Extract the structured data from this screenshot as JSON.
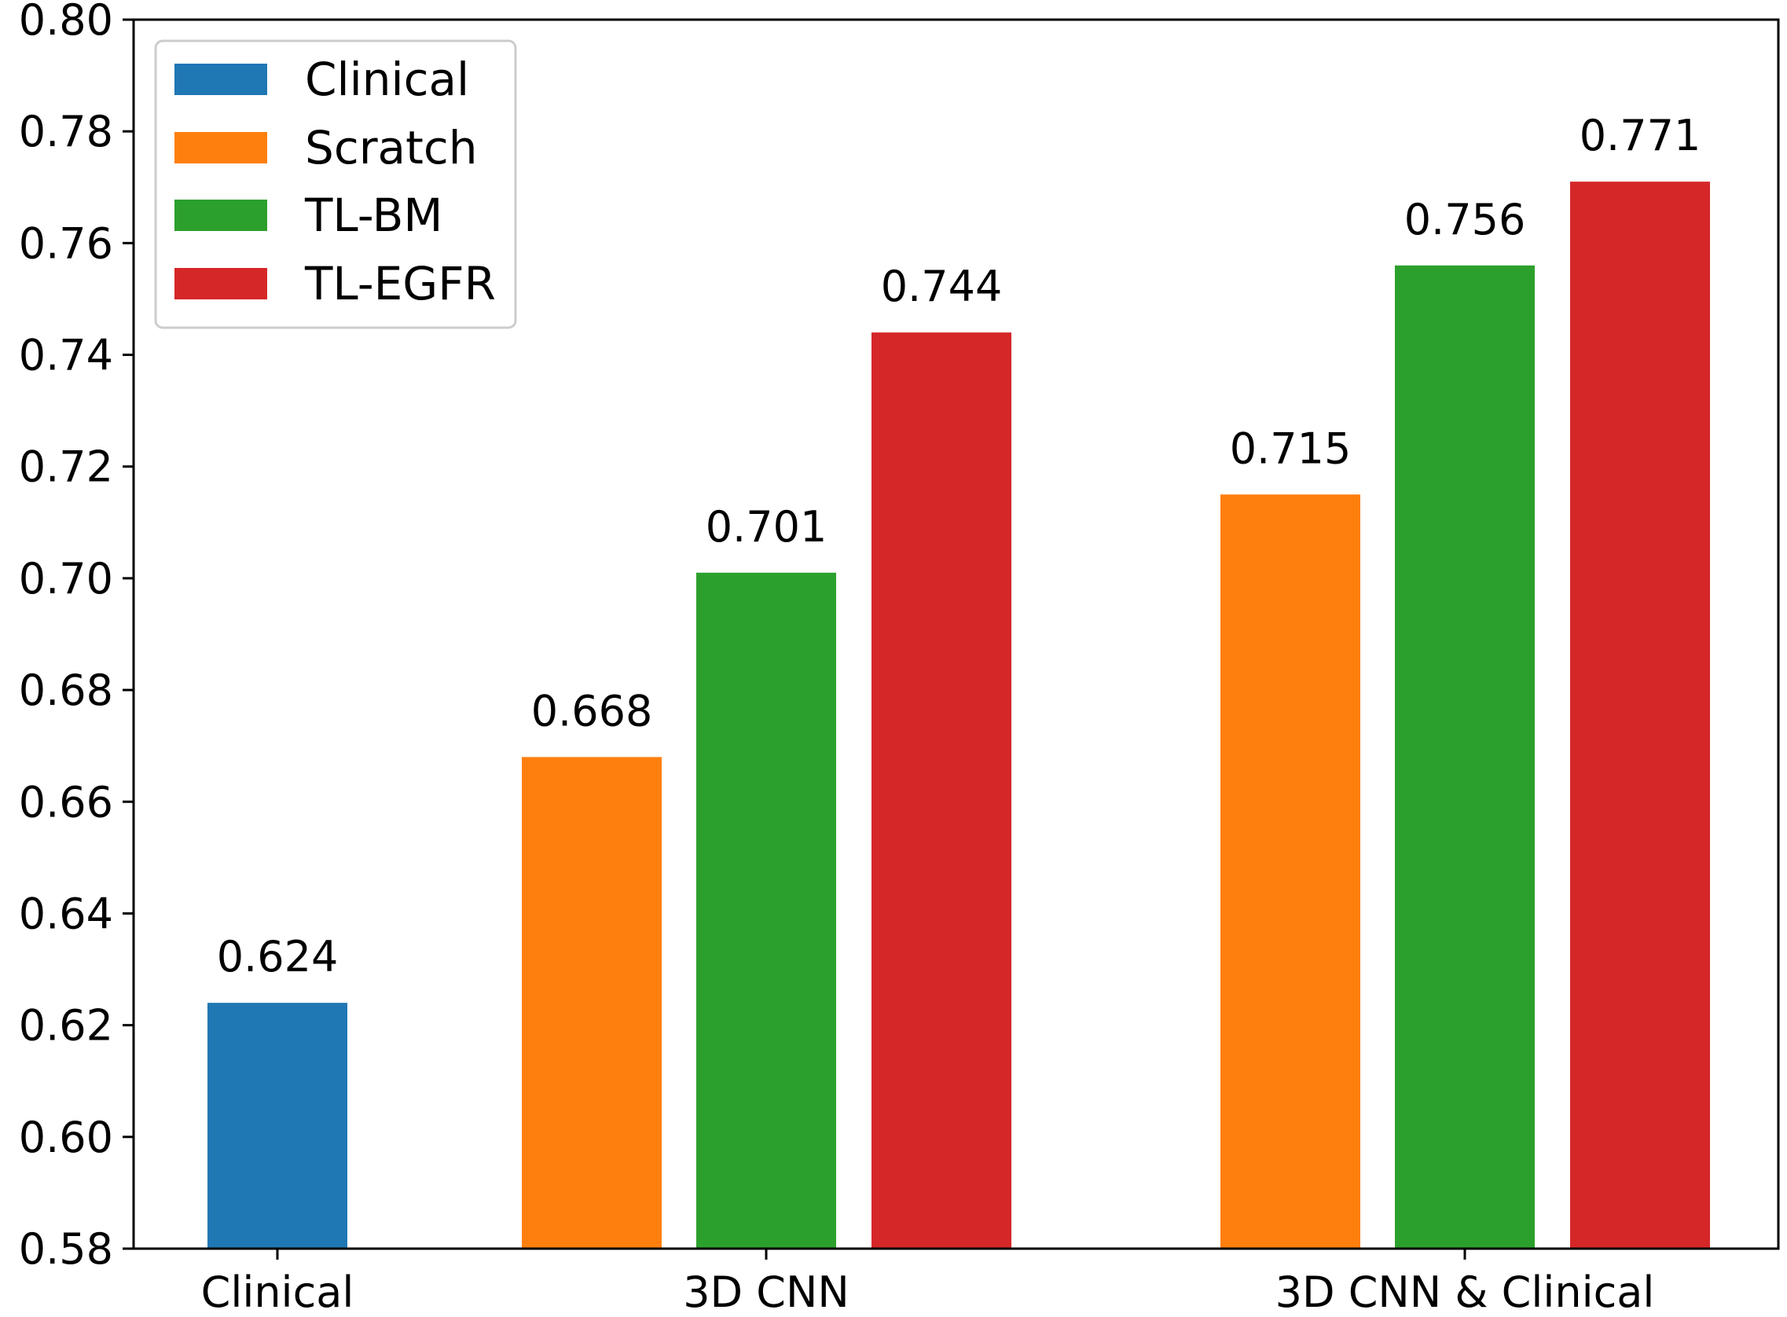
{
  "chart_data": {
    "type": "bar",
    "title": "",
    "xlabel": "",
    "ylabel": "",
    "ylim": [
      0.58,
      0.8
    ],
    "yticks": [
      "0.58",
      "0.60",
      "0.62",
      "0.64",
      "0.66",
      "0.68",
      "0.70",
      "0.72",
      "0.74",
      "0.76",
      "0.78",
      "0.80"
    ],
    "grid": false,
    "legend_position": "top-left",
    "categories": [
      "Clinical",
      "3D CNN",
      "3D CNN & Clinical"
    ],
    "series": [
      {
        "name": "Clinical",
        "color": "#1f77b4",
        "values": [
          0.624,
          null,
          null
        ],
        "labels": [
          "0.624",
          "",
          ""
        ]
      },
      {
        "name": "Scratch",
        "color": "#ff7f0e",
        "values": [
          null,
          0.668,
          0.715
        ],
        "labels": [
          "",
          "0.668",
          "0.715"
        ]
      },
      {
        "name": "TL-BM",
        "color": "#2ca02c",
        "values": [
          null,
          0.701,
          0.756
        ],
        "labels": [
          "",
          "0.701",
          "0.756"
        ]
      },
      {
        "name": "TL-EGFR",
        "color": "#d62728",
        "values": [
          null,
          0.744,
          0.771
        ],
        "labels": [
          "",
          "0.744",
          "0.771"
        ]
      }
    ]
  }
}
